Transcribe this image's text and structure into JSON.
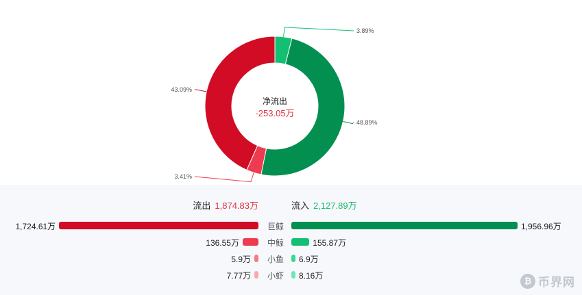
{
  "chart_data": {
    "type": "pie",
    "center_label": "净流出",
    "center_value": "-253.05万",
    "slices": [
      {
        "category": "中鲸流入",
        "value": 3.89,
        "label": "3.89%",
        "color": "#13c073"
      },
      {
        "category": "巨鲸流入",
        "value": 48.89,
        "label": "48.89%",
        "color": "#038f50"
      },
      {
        "category": "中鲸流出",
        "value": 3.41,
        "label": "3.41%",
        "color": "#ef3b4f"
      },
      {
        "category": "巨鲸流出",
        "value": 43.09,
        "label": "43.09%",
        "color": "#d10c24"
      }
    ],
    "summary": {
      "outflow_label": "流出",
      "outflow_value": "1,874.83万",
      "inflow_label": "流入",
      "inflow_value": "2,127.89万"
    },
    "flow_rows": [
      {
        "category": "巨鲸",
        "outflow": 1724.61,
        "outflow_label": "1,724.61万",
        "inflow": 1956.96,
        "inflow_label": "1,956.96万",
        "outflow_color": "#d10c24",
        "inflow_color": "#038f50"
      },
      {
        "category": "中鲸",
        "outflow": 136.55,
        "outflow_label": "136.55万",
        "inflow": 155.87,
        "inflow_label": "155.87万",
        "outflow_color": "#ef3b4f",
        "inflow_color": "#13c073"
      },
      {
        "category": "小鱼",
        "outflow": 5.9,
        "outflow_label": "5.9万",
        "inflow": 6.9,
        "inflow_label": "6.9万",
        "outflow_color": "#f47a85",
        "inflow_color": "#3dd68f"
      },
      {
        "category": "小虾",
        "outflow": 7.77,
        "outflow_label": "7.77万",
        "inflow": 8.16,
        "inflow_label": "8.16万",
        "outflow_color": "#f5a9b0",
        "inflow_color": "#6fe6b5"
      }
    ]
  },
  "watermark": {
    "text": "币界网",
    "icon": "bitcoin-coin-icon"
  }
}
